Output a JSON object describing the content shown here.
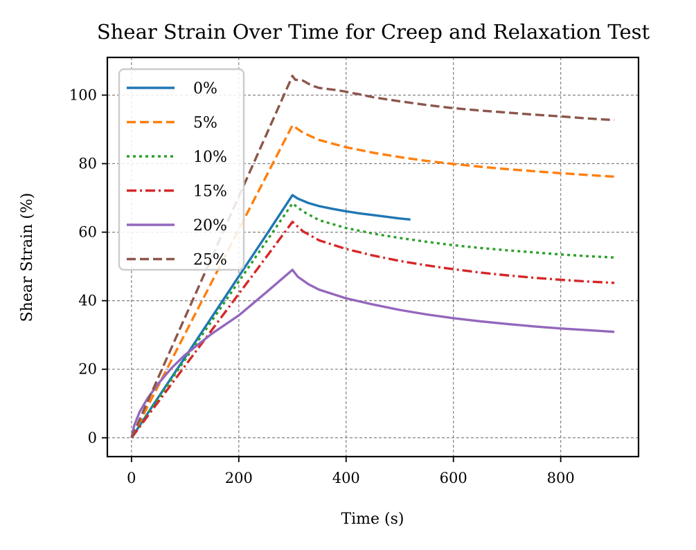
{
  "chart_data": {
    "type": "line",
    "title": "Shear Strain Over Time for Creep and Relaxation Test",
    "xlabel": "Time (s)",
    "ylabel": "Shear Strain (%)",
    "xlim": [
      -45,
      945
    ],
    "ylim": [
      -5.5,
      111
    ],
    "xticks": [
      0,
      200,
      400,
      600,
      800
    ],
    "yticks": [
      0,
      20,
      40,
      60,
      80,
      100
    ],
    "grid": true,
    "legend_position": "top-left",
    "series": [
      {
        "name": "0%",
        "color": "#1f77b4",
        "dash": "solid",
        "x": [
          0,
          50,
          100,
          150,
          200,
          250,
          300,
          310,
          330,
          350,
          375,
          400,
          425,
          450,
          475,
          500,
          520
        ],
        "y": [
          0,
          11.8,
          23.5,
          35.3,
          47.1,
          58.9,
          70.8,
          69.8,
          68.5,
          67.6,
          66.8,
          66.1,
          65.5,
          65.0,
          64.5,
          64.0,
          63.7
        ]
      },
      {
        "name": "5%",
        "color": "#ff7f0e",
        "dash": "dashed",
        "x": [
          0,
          50,
          100,
          150,
          200,
          250,
          300,
          320,
          350,
          400,
          450,
          500,
          550,
          600,
          650,
          700,
          750,
          800,
          850,
          900
        ],
        "y": [
          0,
          15.2,
          30.4,
          45.6,
          60.8,
          76.0,
          91.2,
          89.0,
          86.9,
          84.8,
          83.2,
          81.9,
          80.8,
          79.9,
          79.1,
          78.4,
          77.8,
          77.2,
          76.7,
          76.2
        ]
      },
      {
        "name": "10%",
        "color": "#2ca02c",
        "dash": "dotted",
        "x": [
          0,
          50,
          100,
          150,
          200,
          250,
          300,
          320,
          350,
          400,
          450,
          500,
          550,
          600,
          650,
          700,
          750,
          800,
          850,
          900
        ],
        "y": [
          0,
          11.4,
          22.8,
          34.2,
          45.6,
          57.0,
          68.4,
          66.0,
          63.5,
          61.2,
          59.6,
          58.3,
          57.2,
          56.2,
          55.4,
          54.7,
          54.1,
          53.5,
          53.0,
          52.6
        ]
      },
      {
        "name": "15%",
        "color": "#d62728",
        "dash": "dashdot",
        "x": [
          0,
          50,
          100,
          150,
          200,
          250,
          300,
          320,
          350,
          400,
          450,
          500,
          550,
          600,
          650,
          700,
          750,
          800,
          850,
          900
        ],
        "y": [
          0,
          10.5,
          21.0,
          31.5,
          42.0,
          52.5,
          63.0,
          60.2,
          57.6,
          55.1,
          53.2,
          51.6,
          50.3,
          49.2,
          48.2,
          47.4,
          46.7,
          46.1,
          45.6,
          45.2
        ]
      },
      {
        "name": "20%",
        "color": "#9467bd",
        "dash": "solid",
        "x": [
          0,
          5,
          15,
          30,
          50,
          75,
          100,
          150,
          200,
          250,
          300,
          310,
          330,
          350,
          400,
          450,
          500,
          550,
          600,
          650,
          700,
          750,
          800,
          850,
          900
        ],
        "y": [
          0,
          3.5,
          7.5,
          11.5,
          15.8,
          20.4,
          24.2,
          30.4,
          35.7,
          42.3,
          49.0,
          47.0,
          44.8,
          43.2,
          40.7,
          38.9,
          37.3,
          36.0,
          34.9,
          34.0,
          33.2,
          32.5,
          31.9,
          31.4,
          30.9
        ]
      },
      {
        "name": "25%",
        "color": "#8c564b",
        "dash": "dashed",
        "x": [
          0,
          50,
          100,
          150,
          200,
          250,
          300,
          305,
          320,
          330,
          340,
          350,
          380,
          400,
          410,
          420,
          450,
          500,
          550,
          600,
          650,
          700,
          750,
          800,
          850,
          900
        ],
        "y": [
          0,
          17.6,
          35.2,
          52.8,
          70.4,
          88.0,
          105.6,
          104.5,
          104.2,
          103.3,
          102.6,
          102.1,
          101.5,
          101.0,
          100.6,
          100.4,
          99.4,
          98.2,
          97.1,
          96.2,
          95.5,
          94.9,
          94.3,
          93.8,
          93.2,
          92.7
        ]
      }
    ]
  }
}
